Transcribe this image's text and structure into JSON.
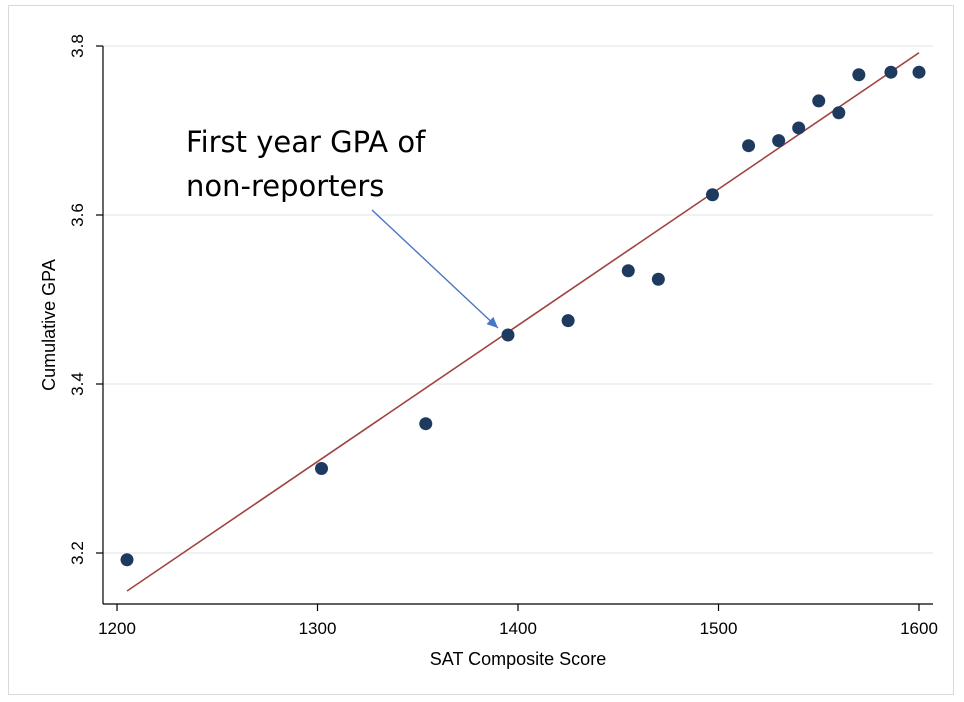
{
  "chart_data": {
    "type": "scatter",
    "xlabel": "SAT Composite Score",
    "ylabel": "Cumulative GPA",
    "xlim": [
      1200,
      1600
    ],
    "ylim": [
      3.2,
      3.8
    ],
    "xticks": [
      "1200",
      "1300",
      "1400",
      "1500",
      "1600"
    ],
    "yticks": [
      "3.2",
      "3.4",
      "3.6",
      "3.8"
    ],
    "grid": "horizontal",
    "points": [
      {
        "x": 1205,
        "y": 3.192
      },
      {
        "x": 1302,
        "y": 3.3
      },
      {
        "x": 1354,
        "y": 3.353
      },
      {
        "x": 1395,
        "y": 3.458
      },
      {
        "x": 1425,
        "y": 3.475
      },
      {
        "x": 1455,
        "y": 3.534
      },
      {
        "x": 1470,
        "y": 3.524
      },
      {
        "x": 1497,
        "y": 3.624
      },
      {
        "x": 1515,
        "y": 3.682
      },
      {
        "x": 1530,
        "y": 3.688
      },
      {
        "x": 1540,
        "y": 3.703
      },
      {
        "x": 1550,
        "y": 3.735
      },
      {
        "x": 1560,
        "y": 3.721
      },
      {
        "x": 1570,
        "y": 3.766
      },
      {
        "x": 1586,
        "y": 3.769
      },
      {
        "x": 1600,
        "y": 3.769
      }
    ],
    "fit_line": {
      "x1": 1205,
      "y1": 3.155,
      "x2": 1600,
      "y2": 3.792
    },
    "annotation": {
      "lines": [
        "First year GPA of",
        "non-reporters"
      ],
      "target": {
        "x": 1395,
        "y": 3.458
      }
    },
    "colors": {
      "points": "#1f3a5f",
      "fit_line": "#a0433f",
      "arrow": "#4a76c5",
      "grid": "#e8eeee"
    }
  }
}
